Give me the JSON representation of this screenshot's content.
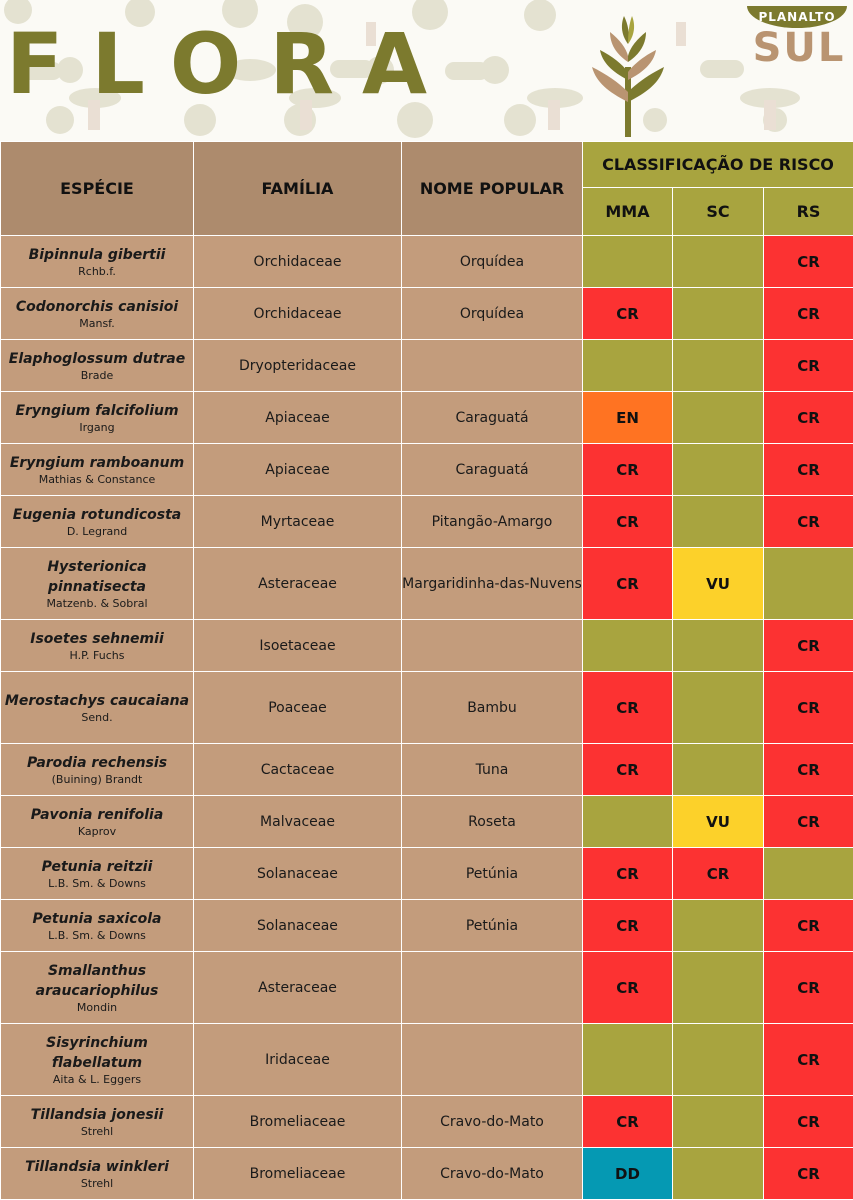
{
  "title": "FLORA",
  "logo": {
    "top": "PLANALTO",
    "bottom": "SUL"
  },
  "table": {
    "headers": {
      "species": "ESPÉCIE",
      "family": "FAMÍLIA",
      "popular": "NOME POPULAR",
      "risk": "CLASSIFICAÇÃO DE RISCO",
      "mma": "MMA",
      "sc": "SC",
      "rs": "RS"
    },
    "rows": [
      {
        "name": "Bipinnula gibertii",
        "author": "Rchb.f.",
        "family": "Orchidaceae",
        "popular": "Orquídea",
        "mma": "",
        "sc": "",
        "rs": "CR"
      },
      {
        "name": "Codonorchis canisioi",
        "author": "Mansf.",
        "family": "Orchidaceae",
        "popular": "Orquídea",
        "mma": "CR",
        "sc": "",
        "rs": "CR"
      },
      {
        "name": "Elaphoglossum dutrae",
        "author": "Brade",
        "family": "Dryopteridaceae",
        "popular": "",
        "mma": "",
        "sc": "",
        "rs": "CR"
      },
      {
        "name": "Eryngium falcifolium",
        "author": "Irgang",
        "family": "Apiaceae",
        "popular": "Caraguatá",
        "mma": "EN",
        "sc": "",
        "rs": "CR"
      },
      {
        "name": "Eryngium ramboanum",
        "author": "Mathias & Constance",
        "family": "Apiaceae",
        "popular": "Caraguatá",
        "mma": "CR",
        "sc": "",
        "rs": "CR"
      },
      {
        "name": "Eugenia rotundicosta",
        "author": "D. Legrand",
        "family": "Myrtaceae",
        "popular": "Pitangão-Amargo",
        "mma": "CR",
        "sc": "",
        "rs": "CR"
      },
      {
        "name": "Hysterionica pinnatisecta",
        "author": "Matzenb. & Sobral",
        "family": "Asteraceae",
        "popular": "Margaridinha-das-Nuvens",
        "mma": "CR",
        "sc": "VU",
        "rs": ""
      },
      {
        "name": "Isoetes sehnemii",
        "author": "H.P. Fuchs",
        "family": "Isoetaceae",
        "popular": "",
        "mma": "",
        "sc": "",
        "rs": "CR"
      },
      {
        "name": "Merostachys caucaiana",
        "author": "Send.",
        "family": "Poaceae",
        "popular": "Bambu",
        "mma": "CR",
        "sc": "",
        "rs": "CR"
      },
      {
        "name": "Parodia rechensis",
        "author": "(Buining) Brandt",
        "family": "Cactaceae",
        "popular": "Tuna",
        "mma": "CR",
        "sc": "",
        "rs": "CR"
      },
      {
        "name": "Pavonia renifolia",
        "author": "Kaprov",
        "family": "Malvaceae",
        "popular": "Roseta",
        "mma": "",
        "sc": "VU",
        "rs": "CR"
      },
      {
        "name": "Petunia reitzii",
        "author": "L.B. Sm. & Downs",
        "family": "Solanaceae",
        "popular": "Petúnia",
        "mma": "CR",
        "sc": "CR",
        "rs": ""
      },
      {
        "name": "Petunia saxicola",
        "author": "L.B. Sm. & Downs",
        "family": "Solanaceae",
        "popular": "Petúnia",
        "mma": "CR",
        "sc": "",
        "rs": "CR"
      },
      {
        "name": "Smallanthus araucariophilus",
        "author": "Mondin",
        "family": "Asteraceae",
        "popular": "",
        "mma": "CR",
        "sc": "",
        "rs": "CR"
      },
      {
        "name": "Sisyrinchium flabellatum",
        "author": "Aita & L. Eggers",
        "family": "Iridaceae",
        "popular": "",
        "mma": "",
        "sc": "",
        "rs": "CR"
      },
      {
        "name": "Tillandsia jonesii",
        "author": "Strehl",
        "family": "Bromeliaceae",
        "popular": "Cravo-do-Mato",
        "mma": "CR",
        "sc": "",
        "rs": "CR"
      },
      {
        "name": "Tillandsia winkleri",
        "author": "Strehl",
        "family": "Bromeliaceae",
        "popular": "Cravo-do-Mato",
        "mma": "DD",
        "sc": "",
        "rs": "CR"
      }
    ]
  }
}
